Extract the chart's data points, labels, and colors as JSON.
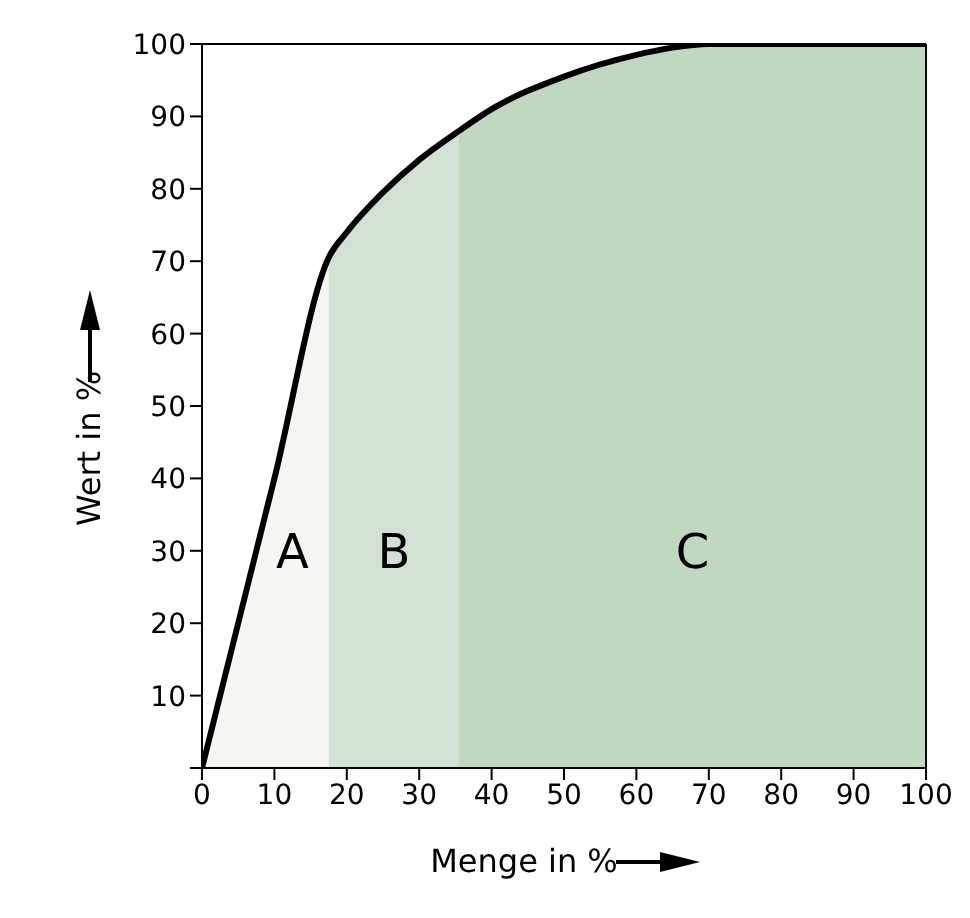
{
  "chart_data": {
    "type": "area",
    "xlabel": "Menge in %",
    "ylabel": "Wert in %",
    "x": [
      0,
      10,
      17.5,
      20,
      25,
      30,
      35.5,
      40,
      50,
      60,
      65,
      70,
      80,
      90,
      100
    ],
    "series": [
      {
        "name": "A",
        "color": "#f4f6f2",
        "values": [
          0,
          40,
          70.5,
          null,
          null,
          null,
          null,
          null,
          null,
          null,
          null,
          null,
          null,
          null,
          null
        ]
      },
      {
        "name": "B",
        "color": "#d3e1d4",
        "values": [
          null,
          null,
          70.5,
          74,
          79.5,
          84,
          88,
          null,
          null,
          null,
          null,
          null,
          null,
          null,
          null
        ]
      },
      {
        "name": "C",
        "color": "#bfd8bf",
        "values": [
          null,
          null,
          null,
          null,
          null,
          null,
          88,
          91,
          95.5,
          98.5,
          99.5,
          100,
          100,
          100,
          100
        ]
      },
      {
        "type": "line",
        "color": "#000000",
        "values": [
          0,
          40,
          70.5,
          74,
          79.5,
          84,
          88,
          91,
          95.5,
          98.5,
          99.5,
          100,
          100,
          100,
          100
        ]
      }
    ],
    "xlim": [
      0,
      100
    ],
    "xticks": [
      0,
      10,
      20,
      30,
      40,
      50,
      60,
      70,
      80,
      90,
      100
    ],
    "ylim": [
      0,
      100
    ],
    "yticks": [
      {
        "value": 0,
        "label": null
      },
      10,
      20,
      30,
      40,
      50,
      60,
      70,
      80,
      90,
      100
    ],
    "grid": false
  }
}
